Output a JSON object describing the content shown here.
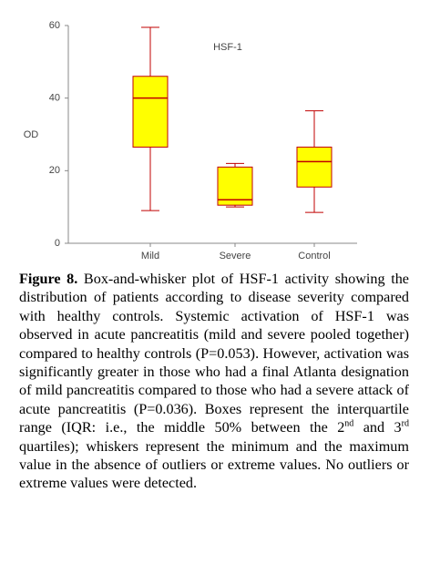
{
  "chart_data": {
    "type": "box",
    "annotation": "HSF-1",
    "y_label": "OD",
    "categories": [
      "Mild",
      "Severe",
      "Control"
    ],
    "boxes": [
      {
        "min": 9,
        "q1": 26.5,
        "median": 40,
        "q3": 46,
        "max": 59.5
      },
      {
        "min": 10,
        "q1": 10.5,
        "median": 12,
        "q3": 21,
        "max": 22
      },
      {
        "min": 8.5,
        "q1": 15.5,
        "median": 22.5,
        "q3": 26.5,
        "max": 36.5
      }
    ],
    "fill": "#ffff00",
    "stroke": "#c00000",
    "ylim": [
      0,
      60
    ],
    "yticks": [
      0,
      20,
      40,
      60
    ]
  },
  "caption": {
    "label": "Figure 8.",
    "runs": [
      {
        "text": " Box-and-whisker plot of HSF-1 activity showing the distribution of patients according to disease severity compared with healthy controls. Systemic activation of HSF-1 was observed in acute pancreatitis (mild and severe pooled together) compared to healthy controls (P=0.053). However, activation was significantly greater in those who had a final Atlanta designation of mild pancreatitis compared to those who had a severe attack of acute pancreatitis (P=0.036). Boxes represent the interquartile range (IQR: i.e., the middle 50% between the 2",
        "sup": false
      },
      {
        "text": "nd",
        "sup": true
      },
      {
        "text": " and 3",
        "sup": false
      },
      {
        "text": "rd",
        "sup": true
      },
      {
        "text": " quartiles); whiskers represent the minimum and the maximum value in the absence of outliers or extreme values. No outliers or extreme values were detected.",
        "sup": false
      }
    ]
  }
}
